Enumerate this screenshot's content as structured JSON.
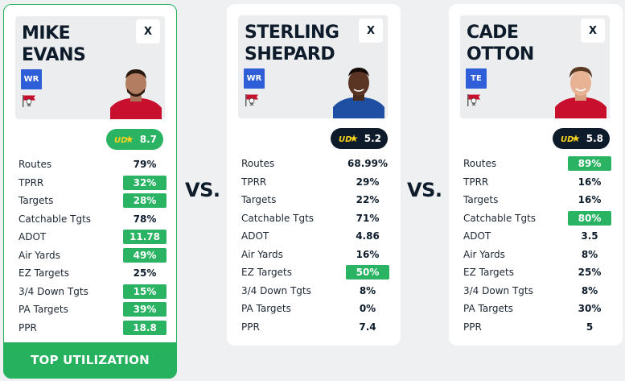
{
  "vs_label": "VS.",
  "colors": {
    "highlight": "#2bb364",
    "navy": "#0d1b2a",
    "badge_blue": "#2e5fd9"
  },
  "players": [
    {
      "name_line1": "MIKE",
      "name_line2": "EVANS",
      "position": "WR",
      "close_label": "X",
      "score": "8.7",
      "score_style": "green",
      "jersey_color": "#c8102e",
      "banner": "TOP UTILIZATION",
      "stats": [
        {
          "label": "Routes",
          "value": "79%",
          "highlight": false
        },
        {
          "label": "TPRR",
          "value": "32%",
          "highlight": true
        },
        {
          "label": "Targets",
          "value": "28%",
          "highlight": true
        },
        {
          "label": "Catchable Tgts",
          "value": "78%",
          "highlight": false
        },
        {
          "label": "ADOT",
          "value": "11.78",
          "highlight": true
        },
        {
          "label": "Air Yards",
          "value": "49%",
          "highlight": true
        },
        {
          "label": "EZ Targets",
          "value": "25%",
          "highlight": false
        },
        {
          "label": "3/4 Down Tgts",
          "value": "15%",
          "highlight": true
        },
        {
          "label": "PA Targets",
          "value": "39%",
          "highlight": true
        },
        {
          "label": "PPR",
          "value": "18.8",
          "highlight": true
        }
      ]
    },
    {
      "name_line1": "STERLING",
      "name_line2": "SHEPARD",
      "position": "WR",
      "close_label": "X",
      "score": "5.2",
      "score_style": "dark",
      "jersey_color": "#1f4fa3",
      "stats": [
        {
          "label": "Routes",
          "value": "68.99%",
          "highlight": false
        },
        {
          "label": "TPRR",
          "value": "29%",
          "highlight": false
        },
        {
          "label": "Targets",
          "value": "22%",
          "highlight": false
        },
        {
          "label": "Catchable Tgts",
          "value": "71%",
          "highlight": false
        },
        {
          "label": "ADOT",
          "value": "4.86",
          "highlight": false
        },
        {
          "label": "Air Yards",
          "value": "16%",
          "highlight": false
        },
        {
          "label": "EZ Targets",
          "value": "50%",
          "highlight": true
        },
        {
          "label": "3/4 Down Tgts",
          "value": "8%",
          "highlight": false
        },
        {
          "label": "PA Targets",
          "value": "0%",
          "highlight": false
        },
        {
          "label": "PPR",
          "value": "7.4",
          "highlight": false
        }
      ]
    },
    {
      "name_line1": "CADE",
      "name_line2": "OTTON",
      "position": "TE",
      "close_label": "X",
      "score": "5.8",
      "score_style": "dark",
      "jersey_color": "#c8102e",
      "stats": [
        {
          "label": "Routes",
          "value": "89%",
          "highlight": true
        },
        {
          "label": "TPRR",
          "value": "16%",
          "highlight": false
        },
        {
          "label": "Targets",
          "value": "16%",
          "highlight": false
        },
        {
          "label": "Catchable Tgts",
          "value": "80%",
          "highlight": true
        },
        {
          "label": "ADOT",
          "value": "3.5",
          "highlight": false
        },
        {
          "label": "Air Yards",
          "value": "8%",
          "highlight": false
        },
        {
          "label": "EZ Targets",
          "value": "25%",
          "highlight": false
        },
        {
          "label": "3/4 Down Tgts",
          "value": "8%",
          "highlight": false
        },
        {
          "label": "PA Targets",
          "value": "30%",
          "highlight": false
        },
        {
          "label": "PPR",
          "value": "5",
          "highlight": false
        }
      ]
    }
  ]
}
